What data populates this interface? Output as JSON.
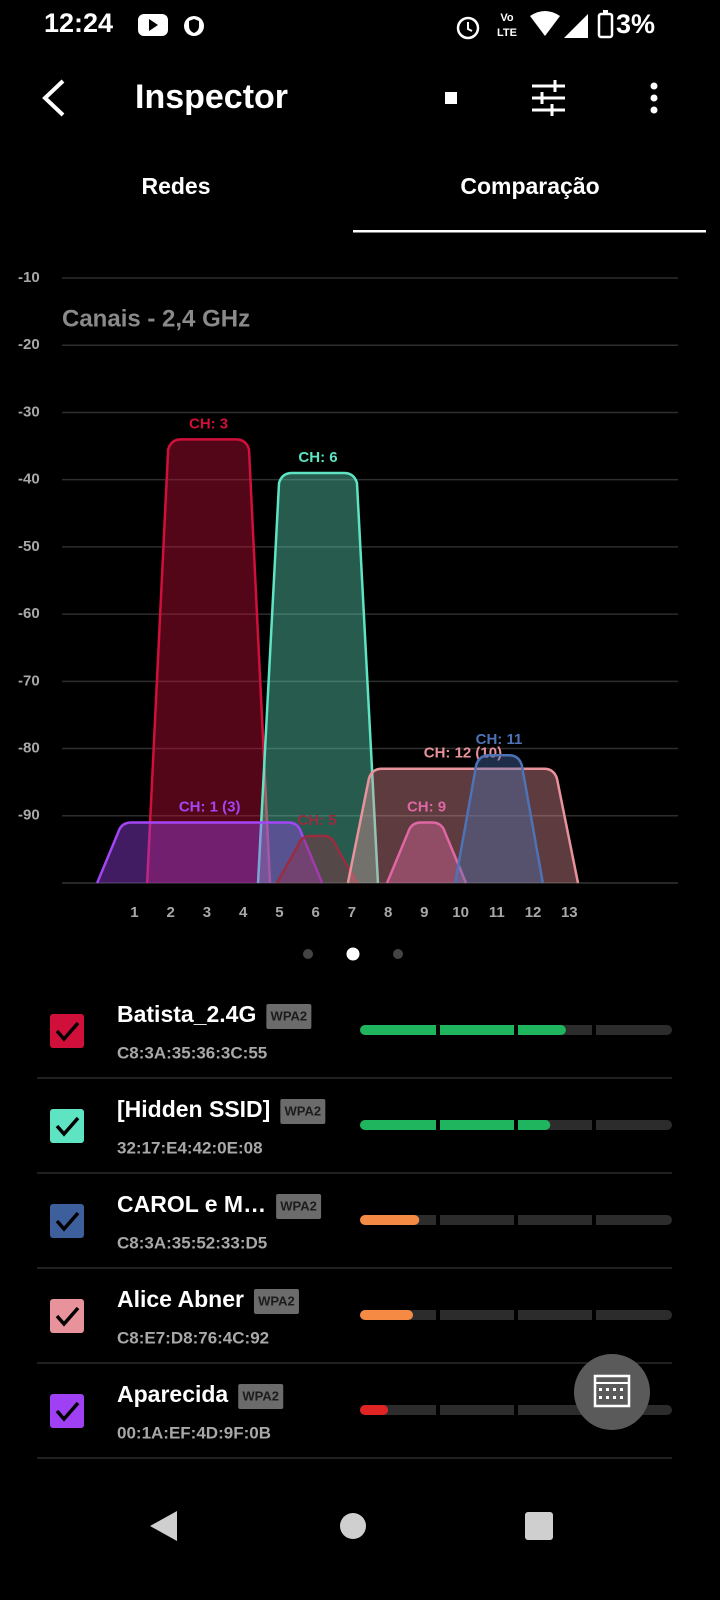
{
  "status_bar": {
    "time": "12:24",
    "volte": [
      "Vo",
      "LTE"
    ],
    "battery": "3%"
  },
  "app_bar": {
    "title": "Inspector"
  },
  "tabs": [
    "Redes",
    "Comparação"
  ],
  "selected_tab": 1,
  "chart_data": {
    "type": "channel",
    "title": "Canais - 2,4 GHz",
    "xlim": [
      -1,
      16
    ],
    "xticks": [
      1,
      2,
      3,
      4,
      5,
      6,
      7,
      8,
      9,
      10,
      11,
      12,
      13
    ],
    "ylim": [
      -100,
      -10
    ],
    "yticks": [
      -10,
      -20,
      -30,
      -40,
      -50,
      -60,
      -70,
      -80,
      -90
    ],
    "grid": true,
    "series": [
      {
        "name": "CH: 3",
        "color": "#d0103a",
        "x": [
          1.35,
          4.74
        ],
        "value": -34
      },
      {
        "name": "CH: 6",
        "color": "#5ee3c3",
        "x": [
          4.41,
          7.72
        ],
        "value": -39
      },
      {
        "name": "CH: 1 (3)",
        "color": "#a445f5",
        "x": [
          -0.03,
          6.18
        ],
        "value": -91
      },
      {
        "name": "CH: 5",
        "color": "#9a2c40",
        "x": [
          4.93,
          7.14
        ],
        "value": -93
      },
      {
        "name": "CH: 9",
        "color": "#d94aa8",
        "x": [
          7.97,
          10.15
        ],
        "value": -91
      },
      {
        "name": "CH: 12 (10)",
        "color": "#e8939c",
        "x": [
          6.89,
          13.24
        ],
        "value": -83
      },
      {
        "name": "CH: 11",
        "color": "#4d72b5",
        "x": [
          9.85,
          12.27
        ],
        "value": -81
      }
    ]
  },
  "networks": [
    {
      "ssid": "Batista_2.4G",
      "security": "WPA2",
      "bssid": "C8:3A:35:36:3C:55",
      "color": "#d0103a",
      "signal": 0.66,
      "signal_color": "#1fb55e"
    },
    {
      "ssid": "[Hidden SSID]",
      "security": "WPA2",
      "bssid": "32:17:E4:42:0E:08",
      "color": "#5ee3c3",
      "signal": 0.61,
      "signal_color": "#1fb55e"
    },
    {
      "ssid": "CAROL e M…",
      "security": "WPA2",
      "bssid": "C8:3A:35:52:33:D5",
      "color": "#3d5f9c",
      "signal": 0.19,
      "signal_color": "#f58a45"
    },
    {
      "ssid": "Alice Abner",
      "security": "WPA2",
      "bssid": "C8:E7:D8:76:4C:92",
      "color": "#e8939c",
      "signal": 0.17,
      "signal_color": "#f58a45"
    },
    {
      "ssid": "Aparecida",
      "security": "WPA2",
      "bssid": "00:1A:EF:4D:9F:0B",
      "color": "#a040f5",
      "signal": 0.09,
      "signal_color": "#e02424"
    }
  ]
}
